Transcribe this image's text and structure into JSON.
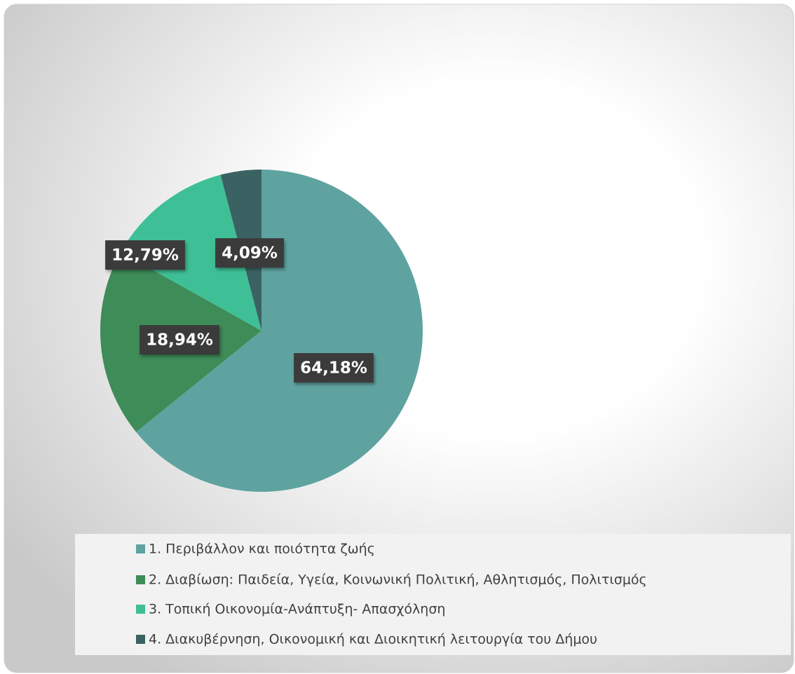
{
  "chart_data": {
    "type": "pie",
    "categories": [
      "1. Περιβάλλον και ποιότητα ζωής",
      "2. Διαβίωση: Παιδεία, Υγεία, Κοινωνική Πολιτική, Αθλητισμός, Πολιτισμός",
      "3. Τοπική Οικονομία-Ανάπτυξη- Απασχόληση",
      "4. Διακυβέρνηση, Οικονομική και Διοικητική λειτουργία του Δήμου"
    ],
    "values": [
      64.18,
      18.94,
      12.79,
      4.09
    ],
    "value_labels": [
      "64,18%",
      "18,94%",
      "12,79%",
      "4,09%"
    ],
    "colors": [
      "#5fa3a0",
      "#3e8c57",
      "#3fbf96",
      "#3a6262"
    ],
    "legend": "bottom"
  }
}
